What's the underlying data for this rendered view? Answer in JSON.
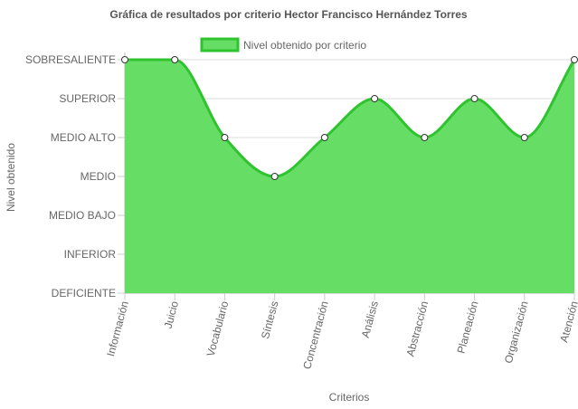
{
  "chart_data": {
    "type": "area",
    "title": "Gráfica de resultados por criterio Hector Francisco Hernández Torres",
    "xlabel": "Criterios",
    "ylabel": "Nivel obtenido",
    "categories": [
      "Información",
      "Juicio",
      "Vocabulario",
      "Síntesis",
      "Concentración",
      "Análisis",
      "Abstracción",
      "Planeación",
      "Organización",
      "Atención"
    ],
    "y_levels": [
      "DEFICIENTE",
      "INFERIOR",
      "MEDIO BAJO",
      "MEDIO",
      "MEDIO ALTO",
      "SUPERIOR",
      "SOBRESALIENTE"
    ],
    "ylim": [
      0,
      6
    ],
    "series": [
      {
        "name": "Nivel obtenido por criterio",
        "values": [
          6,
          6,
          4,
          3,
          4,
          5,
          4,
          5,
          4,
          6
        ],
        "fill_color": "#66DE66",
        "line_color": "#2FC42F"
      }
    ],
    "grid": true,
    "legend": "top"
  }
}
